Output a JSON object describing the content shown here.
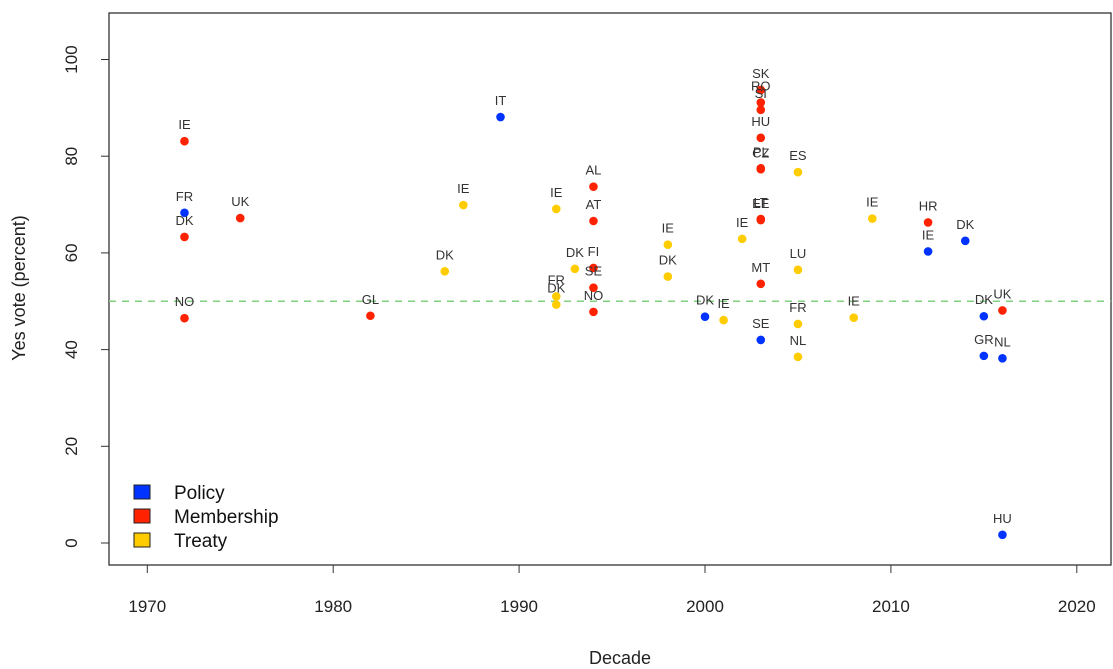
{
  "chart_data": {
    "type": "scatter",
    "xlabel": "Decade",
    "ylabel": "Yes vote (percent)",
    "xlim": [
      1968,
      1972,
      2022
    ],
    "ylim": [
      -5,
      110
    ],
    "x_ticks": [
      1970,
      1980,
      1990,
      2000,
      2010,
      2020
    ],
    "y_ticks": [
      0,
      20,
      40,
      60,
      80,
      100
    ],
    "reference_line": {
      "y": 50,
      "style": "dashed",
      "color": "#7fd17f"
    },
    "grid": false,
    "legend_position": "bottom-left",
    "series": [
      {
        "name": "Policy",
        "color": "#0033ff",
        "points": [
          {
            "label": "FR",
            "x": 1972,
            "y": 68.3
          },
          {
            "label": "IT",
            "x": 1989,
            "y": 88.1
          },
          {
            "label": "DK",
            "x": 2000,
            "y": 46.8
          },
          {
            "label": "SE",
            "x": 2003,
            "y": 42.0
          },
          {
            "label": "IE",
            "x": 2012,
            "y": 60.3
          },
          {
            "label": "DK",
            "x": 2014,
            "y": 62.5
          },
          {
            "label": "DK",
            "x": 2015,
            "y": 46.9
          },
          {
            "label": "GR",
            "x": 2015,
            "y": 38.7
          },
          {
            "label": "NL",
            "x": 2016,
            "y": 38.2
          },
          {
            "label": "HU",
            "x": 2016,
            "y": 1.7
          }
        ]
      },
      {
        "name": "Membership",
        "color": "#ff2200",
        "points": [
          {
            "label": "IE",
            "x": 1972,
            "y": 83.1
          },
          {
            "label": "DK",
            "x": 1972,
            "y": 63.3
          },
          {
            "label": "NO",
            "x": 1972,
            "y": 46.5
          },
          {
            "label": "UK",
            "x": 1975,
            "y": 67.2
          },
          {
            "label": "GL",
            "x": 1982,
            "y": 47.0
          },
          {
            "label": "AL",
            "x": 1994,
            "y": 73.7
          },
          {
            "label": "AT",
            "x": 1994,
            "y": 66.6
          },
          {
            "label": "FI",
            "x": 1994,
            "y": 56.9
          },
          {
            "label": "SE",
            "x": 1994,
            "y": 52.8
          },
          {
            "label": "NO",
            "x": 1994,
            "y": 47.8
          },
          {
            "label": "SK",
            "x": 2003,
            "y": 93.7
          },
          {
            "label": "RO",
            "x": 2003,
            "y": 91.1
          },
          {
            "label": "SI",
            "x": 2003,
            "y": 89.6
          },
          {
            "label": "HU",
            "x": 2003,
            "y": 83.8
          },
          {
            "label": "PL",
            "x": 2003,
            "y": 77.5
          },
          {
            "label": "CZ",
            "x": 2003,
            "y": 77.3
          },
          {
            "label": "LT",
            "x": 2003,
            "y": 67.0
          },
          {
            "label": "EE",
            "x": 2003,
            "y": 66.8
          },
          {
            "label": "MT",
            "x": 2003,
            "y": 53.6
          },
          {
            "label": "HR",
            "x": 2012,
            "y": 66.3
          },
          {
            "label": "UK",
            "x": 2016,
            "y": 48.1
          }
        ]
      },
      {
        "name": "Treaty",
        "color": "#ffcc00",
        "points": [
          {
            "label": "DK",
            "x": 1986,
            "y": 56.2
          },
          {
            "label": "IE",
            "x": 1987,
            "y": 69.9
          },
          {
            "label": "IE",
            "x": 1992,
            "y": 69.1
          },
          {
            "label": "FR",
            "x": 1992,
            "y": 51.0
          },
          {
            "label": "DK",
            "x": 1992,
            "y": 49.3
          },
          {
            "label": "DK",
            "x": 1993,
            "y": 56.7
          },
          {
            "label": "IE",
            "x": 1998,
            "y": 61.7
          },
          {
            "label": "DK",
            "x": 1998,
            "y": 55.1
          },
          {
            "label": "IE",
            "x": 2001,
            "y": 46.1
          },
          {
            "label": "IE",
            "x": 2002,
            "y": 62.9
          },
          {
            "label": "ES",
            "x": 2005,
            "y": 76.7
          },
          {
            "label": "LU",
            "x": 2005,
            "y": 56.5
          },
          {
            "label": "FR",
            "x": 2005,
            "y": 45.3
          },
          {
            "label": "NL",
            "x": 2005,
            "y": 38.5
          },
          {
            "label": "IE",
            "x": 2008,
            "y": 46.6
          },
          {
            "label": "IE",
            "x": 2009,
            "y": 67.1
          }
        ]
      }
    ]
  }
}
